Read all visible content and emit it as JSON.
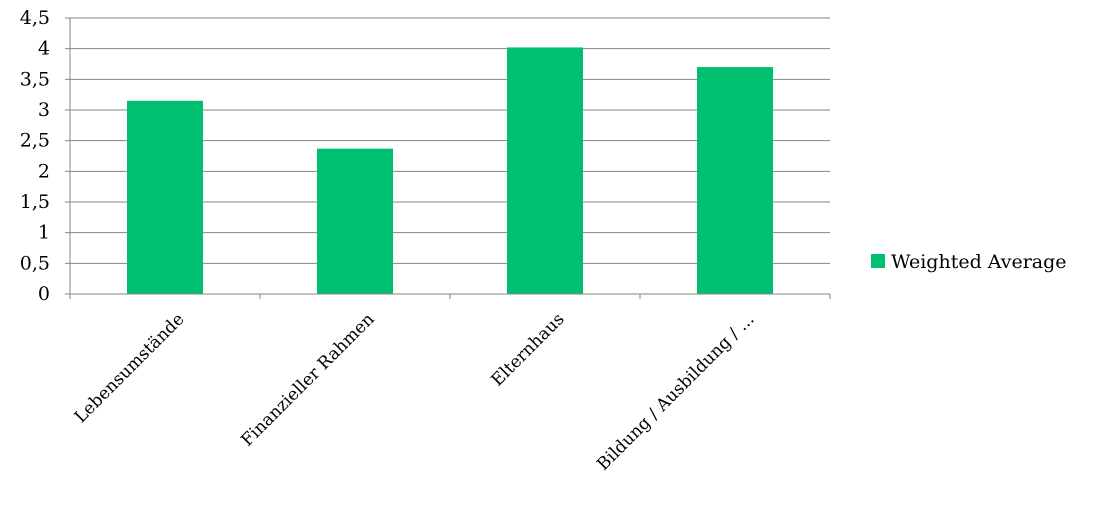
{
  "chart_data": {
    "type": "bar",
    "title": "",
    "xlabel": "",
    "ylabel": "",
    "categories": [
      "Lebensumstände",
      "Finanzieller Rahmen",
      "Elternhaus",
      "Bildung / Ausbildung / ..."
    ],
    "series": [
      {
        "name": "Weighted Average",
        "color": "#00BF6F",
        "values": [
          3.15,
          2.37,
          4.02,
          3.7
        ]
      }
    ],
    "ylim": [
      0,
      4.5
    ],
    "yticks": [
      0,
      0.5,
      1,
      1.5,
      2,
      2.5,
      3,
      3.5,
      4,
      4.5
    ],
    "ytick_labels": [
      "0",
      "0,5",
      "1",
      "1,5",
      "2",
      "2,5",
      "3",
      "3,5",
      "4",
      "4,5"
    ],
    "grid": true,
    "legend": "right"
  }
}
